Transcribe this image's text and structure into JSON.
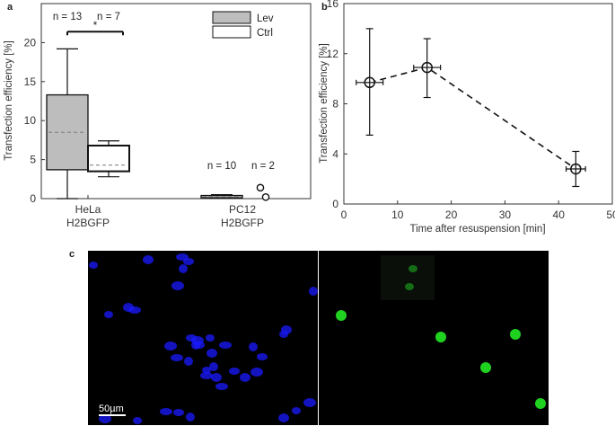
{
  "panels": {
    "a": "a",
    "b": "b",
    "c": "c"
  },
  "chart_data": [
    {
      "type": "box",
      "panel": "a",
      "ylabel": "Transfection efficiency [%]",
      "ylim": [
        0,
        25
      ],
      "yticks": [
        0,
        5,
        10,
        15,
        20
      ],
      "categories": [
        "HeLa\nH2BGFP",
        "PC12\nH2BGFP"
      ],
      "category_labels": [
        [
          "HeLa",
          "H2BGFP"
        ],
        [
          "PC12",
          "H2BGFP"
        ]
      ],
      "legend": {
        "position": "top-right",
        "entries": [
          {
            "name": "Lev",
            "fill": "#bdbdbd"
          },
          {
            "name": "Ctrl",
            "fill": "#ffffff"
          }
        ]
      },
      "series": [
        {
          "name": "Lev",
          "fill": "#bdbdbd",
          "boxes": [
            {
              "category": 0,
              "n_label": "n = 13",
              "whisker_low": 0,
              "q1": 3.7,
              "median": 8.5,
              "q3": 13.3,
              "whisker_high": 19.2
            },
            {
              "category": 1,
              "n_label": "n = 10",
              "whisker_low": 0.1,
              "q1": 0.1,
              "median": 0.25,
              "q3": 0.4,
              "whisker_high": 0.5
            }
          ]
        },
        {
          "name": "Ctrl",
          "fill": "#ffffff",
          "boxes": [
            {
              "category": 0,
              "n_label": "n = 7",
              "whisker_low": 2.8,
              "q1": 3.5,
              "median": 4.3,
              "q3": 6.8,
              "whisker_high": 7.4
            },
            {
              "category": 1,
              "n_label": "n = 2",
              "outliers": [
                0.2,
                1.4
              ]
            }
          ]
        }
      ],
      "significance": {
        "label": "*",
        "between": [
          "Lev HeLa",
          "Ctrl HeLa"
        ],
        "y": 21.4
      }
    },
    {
      "type": "line",
      "panel": "b",
      "xlabel": "Time after resuspension [min]",
      "ylabel": "Transfection efficiency [%]",
      "xlim": [
        0,
        50
      ],
      "ylim": [
        0,
        16
      ],
      "xticks": [
        0,
        10,
        20,
        30,
        40,
        50
      ],
      "yticks": [
        0,
        4,
        8,
        12,
        16
      ],
      "line_style": "dashed",
      "marker": "circle-cross",
      "points": [
        {
          "x": 4.8,
          "y": 9.7,
          "xerr": 2.5,
          "y_low": 5.5,
          "y_high": 14.0
        },
        {
          "x": 15.5,
          "y": 10.9,
          "xerr": 2.5,
          "y_low": 8.5,
          "y_high": 13.2
        },
        {
          "x": 43.2,
          "y": 2.8,
          "xerr": 1.8,
          "y_low": 1.4,
          "y_high": 4.2
        }
      ]
    }
  ],
  "micrographs": {
    "left_channel_color": "#1a1aff",
    "right_channel_color": "#22dd22",
    "scale_bar_label": "50µm"
  }
}
